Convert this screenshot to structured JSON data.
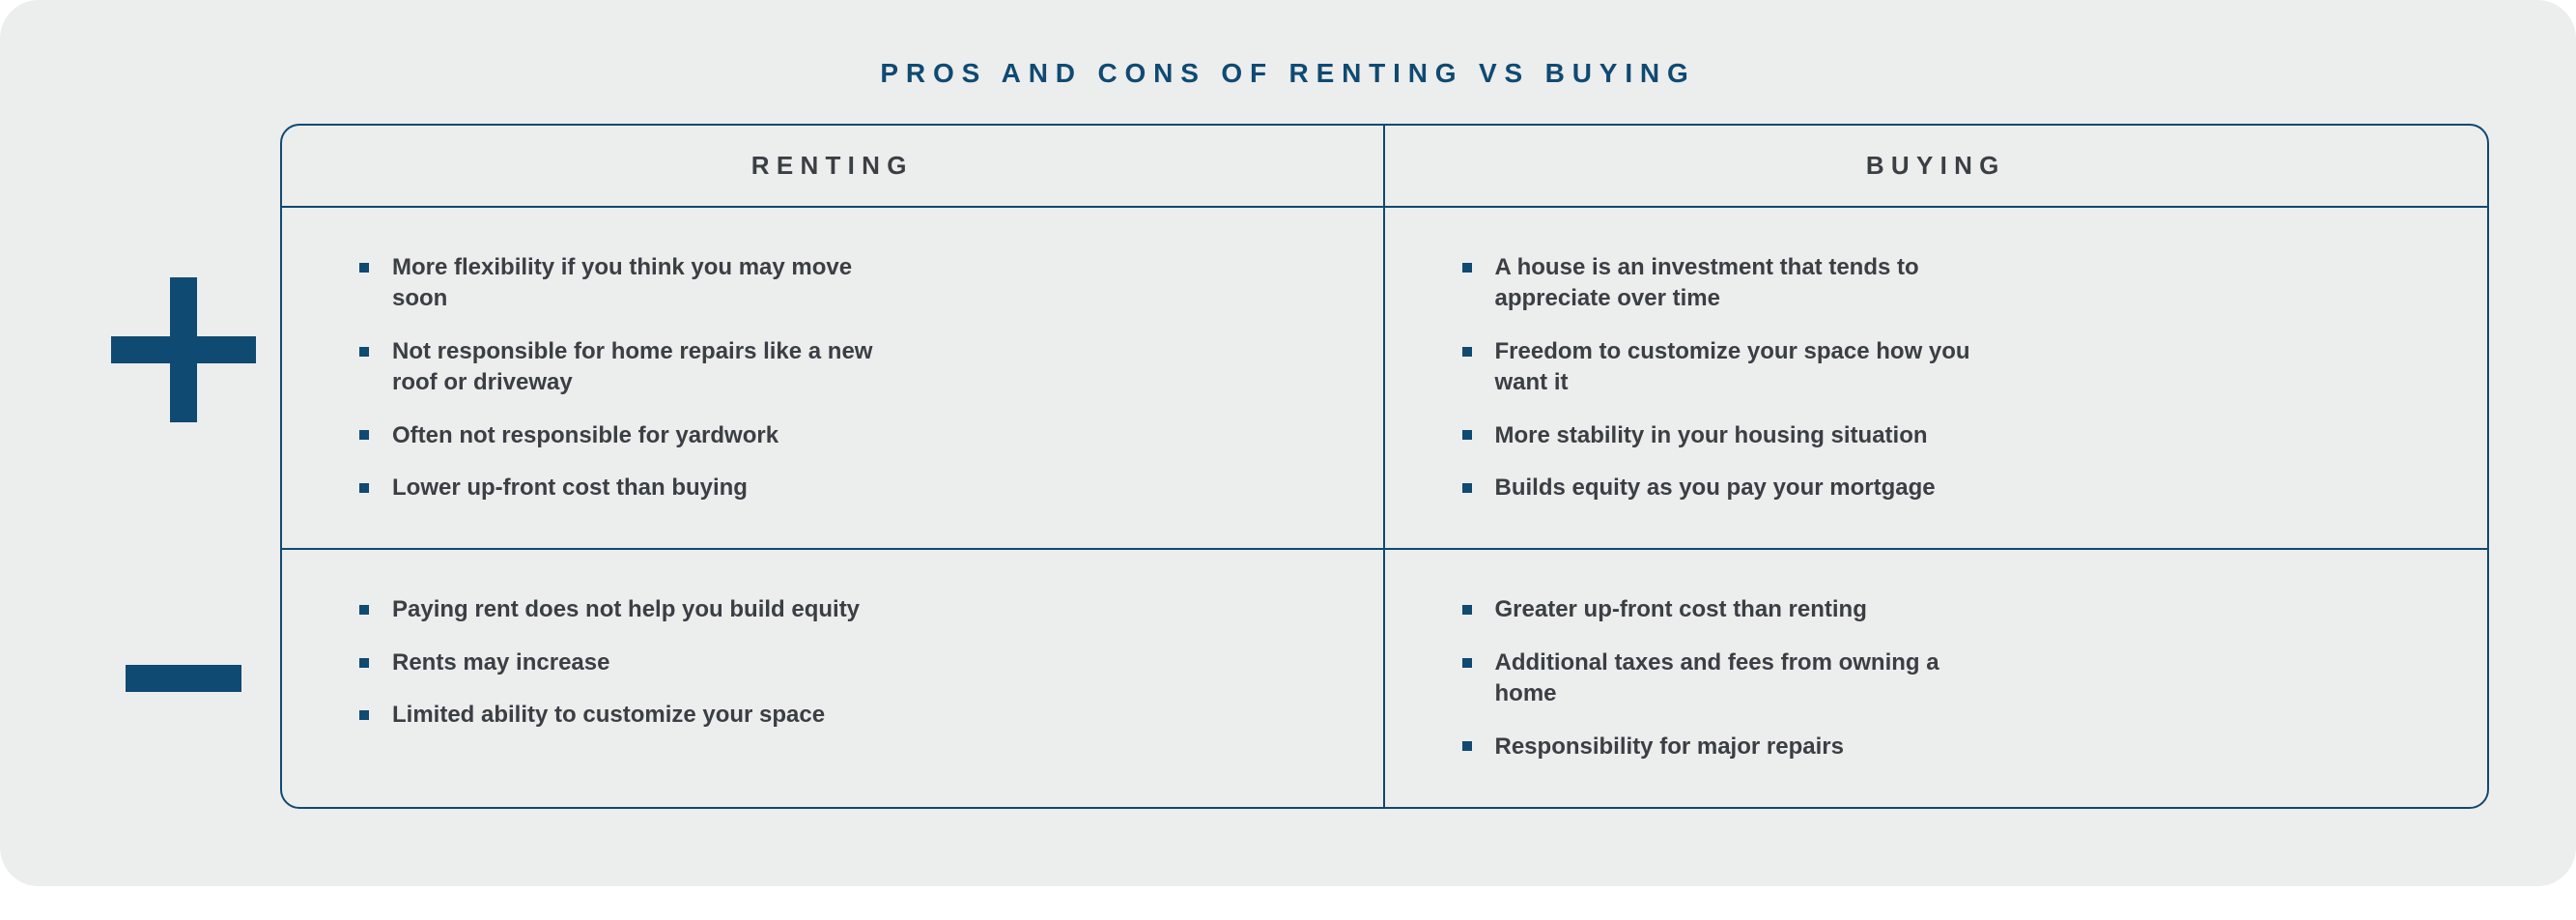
{
  "colors": {
    "card_bg": "#eceded",
    "title_color": "#0f4a72",
    "border_color": "#0f4a72",
    "header_text_color": "#3a3f44",
    "body_text_color": "#3a3f44",
    "bullet_color": "#0f4a72",
    "icon_color": "#0f4a72"
  },
  "typography": {
    "title_fontsize": 28,
    "header_fontsize": 26,
    "body_fontsize": 24
  },
  "layout": {
    "icon_stroke_width": 28,
    "icon_size": 150,
    "minus_width": 120,
    "pros_row_height": 360,
    "cons_row_height": 240
  },
  "title": "PROS AND CONS OF RENTING VS BUYING",
  "columns": {
    "renting": {
      "label": "RENTING"
    },
    "buying": {
      "label": "BUYING"
    }
  },
  "pros": {
    "renting": [
      "More flexibility if you think you may move soon",
      "Not responsible for home repairs like a new roof or driveway",
      "Often not responsible for yardwork",
      "Lower up-front cost than buying"
    ],
    "buying": [
      "A house is an investment that tends to appreciate over time",
      "Freedom to customize your space how you want it",
      "More stability in your housing situation",
      "Builds equity as you pay your mortgage"
    ]
  },
  "cons": {
    "renting": [
      "Paying rent does not help you build equity",
      "Rents may increase",
      "Limited ability to customize your space"
    ],
    "buying": [
      "Greater up-front cost than renting",
      "Additional taxes and fees from owning a home",
      "Responsibility for major repairs"
    ]
  }
}
